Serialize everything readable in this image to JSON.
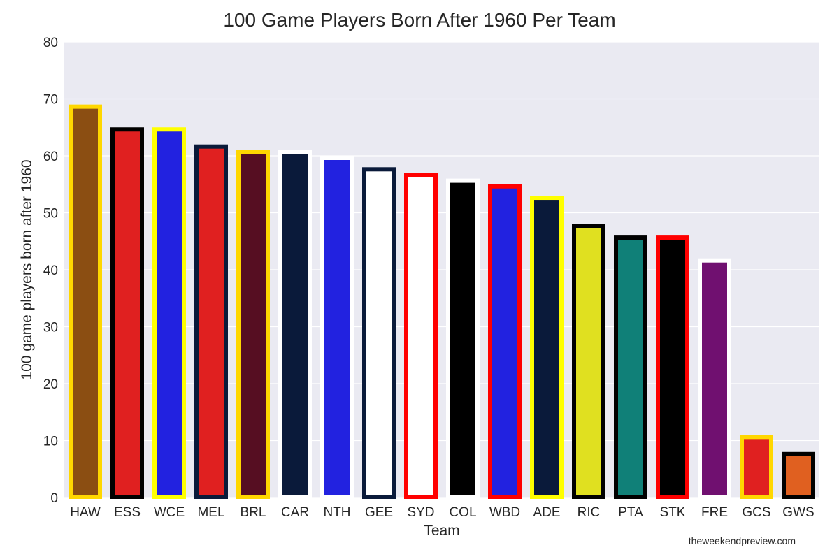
{
  "chart_data": {
    "type": "bar",
    "title": "100 Game Players Born After 1960 Per Team",
    "xlabel": "Team",
    "ylabel": "100 game players born after 1960",
    "ylim": [
      0,
      80
    ],
    "yticks": [
      0,
      10,
      20,
      30,
      40,
      50,
      60,
      70,
      80
    ],
    "grid": true,
    "categories": [
      "HAW",
      "ESS",
      "WCE",
      "MEL",
      "BRL",
      "CAR",
      "NTH",
      "GEE",
      "SYD",
      "COL",
      "WBD",
      "ADE",
      "RIC",
      "PTA",
      "STK",
      "FRE",
      "GCS",
      "GWS"
    ],
    "values": [
      69,
      65,
      65,
      62,
      61,
      61,
      60,
      58,
      57,
      56,
      55,
      53,
      48,
      46,
      46,
      42,
      11,
      8
    ],
    "fill_colors": [
      "#8B4E12",
      "#E02020",
      "#2222E0",
      "#E02020",
      "#560E22",
      "#0A1A3A",
      "#2222E0",
      "#FFFFFF",
      "#FFFFFF",
      "#000000",
      "#2222E0",
      "#0A1A3A",
      "#E0E020",
      "#108078",
      "#000000",
      "#701070",
      "#E02020",
      "#E06020"
    ],
    "edge_colors": [
      "#FFD700",
      "#000000",
      "#FFFF00",
      "#0A1A3A",
      "#FFD700",
      "#FFFFFF",
      "#FFFFFF",
      "#0A1A3A",
      "#FF0000",
      "#FFFFFF",
      "#FF0000",
      "#FFFF00",
      "#000000",
      "#000000",
      "#FF0000",
      "#FFFFFF",
      "#FFD700",
      "#000000"
    ]
  },
  "watermark": "theweekendpreview.com"
}
